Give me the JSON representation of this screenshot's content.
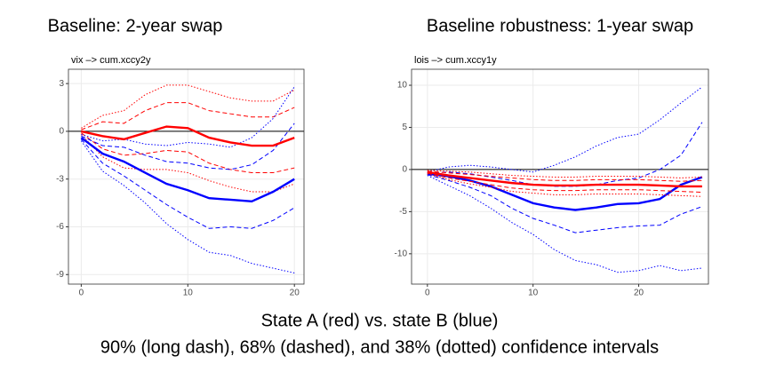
{
  "chart_data": [
    {
      "type": "line",
      "title": "Baseline: 2-year swap",
      "subtitle": "vix –> cum.xccy2y",
      "x": [
        0,
        2,
        4,
        6,
        8,
        10,
        12,
        14,
        16,
        18,
        20
      ],
      "xlim": [
        -1.2,
        20.9
      ],
      "xticks": [
        0,
        10,
        20
      ],
      "ylim": [
        -9.6,
        3.9
      ],
      "yticks": [
        -9,
        -6,
        -3,
        0,
        3
      ],
      "grid": true,
      "reference_line": 0,
      "series": [
        {
          "color": "#ff0000",
          "style": "dotted",
          "values": [
            0.2,
            1.0,
            1.3,
            2.3,
            2.9,
            2.9,
            2.5,
            2.1,
            1.9,
            1.9,
            2.6
          ]
        },
        {
          "color": "#ff0000",
          "style": "dotted",
          "values": [
            -0.2,
            -1.6,
            -2.3,
            -2.4,
            -2.4,
            -2.6,
            -3.1,
            -3.5,
            -3.8,
            -3.8,
            -3.3
          ]
        },
        {
          "color": "#ff0000",
          "style": "dashed",
          "values": [
            0.1,
            0.6,
            0.5,
            1.3,
            1.8,
            1.8,
            1.3,
            1.1,
            0.9,
            0.9,
            1.5
          ]
        },
        {
          "color": "#ff0000",
          "style": "dashed",
          "values": [
            -0.1,
            -1.1,
            -1.5,
            -1.4,
            -1.2,
            -1.3,
            -2.0,
            -2.4,
            -2.6,
            -2.6,
            -2.3
          ]
        },
        {
          "color": "#0000ff",
          "style": "dotted",
          "values": [
            -0.2,
            -0.6,
            -0.5,
            -0.8,
            -0.9,
            -0.7,
            -0.8,
            -1.0,
            -0.4,
            0.8,
            2.8
          ]
        },
        {
          "color": "#0000ff",
          "style": "dotted",
          "values": [
            -0.6,
            -2.5,
            -3.4,
            -4.5,
            -5.8,
            -6.8,
            -7.6,
            -7.8,
            -8.3,
            -8.6,
            -8.9
          ]
        },
        {
          "color": "#0000ff",
          "style": "dashed",
          "values": [
            -0.3,
            -0.9,
            -1.0,
            -1.5,
            -1.9,
            -2.0,
            -2.3,
            -2.4,
            -2.1,
            -1.2,
            0.5
          ]
        },
        {
          "color": "#0000ff",
          "style": "dashed",
          "values": [
            -0.5,
            -2.0,
            -2.8,
            -3.7,
            -4.6,
            -5.4,
            -6.1,
            -6.0,
            -6.1,
            -5.6,
            -4.8
          ]
        },
        {
          "color": "#ff0000",
          "style": "solid",
          "values": [
            0,
            -0.3,
            -0.5,
            -0.1,
            0.3,
            0.2,
            -0.4,
            -0.7,
            -0.9,
            -0.9,
            -0.4
          ]
        },
        {
          "color": "#0000ff",
          "style": "solid",
          "values": [
            -0.4,
            -1.4,
            -1.9,
            -2.6,
            -3.3,
            -3.7,
            -4.2,
            -4.3,
            -4.4,
            -3.8,
            -3.0
          ]
        }
      ]
    },
    {
      "type": "line",
      "title": "Baseline robustness: 1-year swap",
      "subtitle": "lois –> cum.xccy1y",
      "x": [
        0,
        2,
        4,
        6,
        8,
        10,
        12,
        14,
        16,
        18,
        20,
        22,
        24,
        26
      ],
      "xlim": [
        -1.5,
        26.6
      ],
      "xticks": [
        0,
        10,
        20
      ],
      "ylim": [
        -13.6,
        11.9
      ],
      "yticks": [
        -10,
        -5,
        0,
        5,
        10
      ],
      "grid": true,
      "reference_line": 0,
      "series": [
        {
          "color": "#0000ff",
          "style": "dotted",
          "values": [
            -0.3,
            0.3,
            0.5,
            0.3,
            0.0,
            -0.3,
            0.5,
            1.5,
            2.8,
            3.8,
            4.2,
            5.9,
            7.9,
            9.8
          ]
        },
        {
          "color": "#0000ff",
          "style": "dotted",
          "values": [
            -0.7,
            -1.9,
            -3.1,
            -4.6,
            -6.3,
            -7.7,
            -9.5,
            -10.8,
            -11.3,
            -12.2,
            -12.0,
            -11.4,
            -12.0,
            -11.7
          ]
        },
        {
          "color": "#0000ff",
          "style": "dashed",
          "values": [
            -0.4,
            -0.3,
            -0.5,
            -0.9,
            -1.3,
            -1.8,
            -2.0,
            -2.0,
            -1.8,
            -1.3,
            -1.0,
            0.0,
            1.7,
            5.6
          ]
        },
        {
          "color": "#0000ff",
          "style": "dashed",
          "values": [
            -0.6,
            -1.3,
            -2.1,
            -3.1,
            -4.6,
            -5.8,
            -6.6,
            -7.5,
            -7.2,
            -6.9,
            -6.7,
            -6.6,
            -5.3,
            -4.4
          ]
        },
        {
          "color": "#0000ff",
          "style": "solid",
          "values": [
            -0.5,
            -0.8,
            -1.3,
            -2.0,
            -3.0,
            -4.0,
            -4.5,
            -4.8,
            -4.5,
            -4.1,
            -4.0,
            -3.5,
            -1.8,
            -0.9
          ]
        },
        {
          "color": "#ff0000",
          "style": "dotted",
          "values": [
            -0.1,
            -0.2,
            -0.3,
            -0.5,
            -0.7,
            -0.8,
            -0.9,
            -0.9,
            -0.8,
            -0.8,
            -0.8,
            -0.9,
            -1.0,
            -0.9
          ]
        },
        {
          "color": "#ff0000",
          "style": "dotted",
          "values": [
            -0.5,
            -1.2,
            -1.7,
            -2.1,
            -2.6,
            -2.8,
            -3.0,
            -3.0,
            -2.9,
            -2.9,
            -2.9,
            -3.0,
            -3.1,
            -3.2
          ]
        },
        {
          "color": "#ff0000",
          "style": "dashed",
          "values": [
            -0.2,
            -0.4,
            -0.6,
            -0.8,
            -1.0,
            -1.2,
            -1.3,
            -1.3,
            -1.2,
            -1.2,
            -1.2,
            -1.3,
            -1.4,
            -1.3
          ]
        },
        {
          "color": "#ff0000",
          "style": "dashed",
          "values": [
            -0.4,
            -1.0,
            -1.4,
            -1.8,
            -2.2,
            -2.4,
            -2.5,
            -2.5,
            -2.4,
            -2.4,
            -2.4,
            -2.5,
            -2.6,
            -2.7
          ]
        },
        {
          "color": "#ff0000",
          "style": "solid",
          "values": [
            -0.3,
            -0.7,
            -1.0,
            -1.3,
            -1.6,
            -1.8,
            -1.9,
            -1.9,
            -1.8,
            -1.8,
            -1.8,
            -1.9,
            -2.0,
            -2.0
          ]
        }
      ]
    }
  ],
  "caption": {
    "line1": "State A (red) vs. state B (blue)",
    "line2": "90% (long dash), 68% (dashed), and 38% (dotted) confidence intervals"
  }
}
